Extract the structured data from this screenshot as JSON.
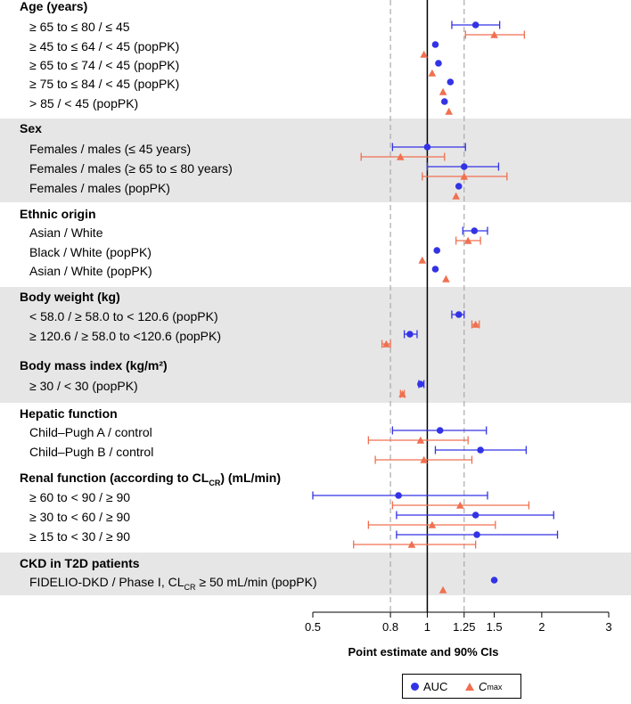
{
  "chart_data": {
    "type": "forest",
    "xscale": "log",
    "xlim": [
      0.5,
      3
    ],
    "xticks": [
      {
        "value": 0.5,
        "label": "0.5"
      },
      {
        "value": 0.8,
        "label": "0.8"
      },
      {
        "value": 1,
        "label": "1"
      },
      {
        "value": 1.25,
        "label": "1.25"
      },
      {
        "value": 1.5,
        "label": "1.5"
      },
      {
        "value": 2,
        "label": "2"
      },
      {
        "value": 3,
        "label": "3"
      }
    ],
    "reference_lines": [
      0.8,
      1,
      1.25
    ],
    "xlabel": "Point estimate and 90% CIs",
    "legend": {
      "auc": "AUC",
      "cmax_main": "C",
      "cmax_sub": "max"
    },
    "colors": {
      "auc": "#3333e6",
      "cmax": "#f07050",
      "band": "#e6e6e6"
    },
    "groups": [
      {
        "title": "Age (years)",
        "shaded": false,
        "rows": [
          {
            "label": "≥ 65 to ≤ 80 / ≤ 45",
            "auc": {
              "est": 1.34,
              "lo": 1.16,
              "hi": 1.55
            },
            "cmax": {
              "est": 1.5,
              "lo": 1.26,
              "hi": 1.8
            }
          },
          {
            "label": "≥ 45 to ≤ 64 / < 45 (popPK)",
            "auc": {
              "est": 1.05
            },
            "cmax": {
              "est": 0.98
            }
          },
          {
            "label": "≥ 65 to ≤ 74 / < 45 (popPK)",
            "auc": {
              "est": 1.07
            },
            "cmax": {
              "est": 1.03
            }
          },
          {
            "label": "≥ 75 to ≤ 84 / < 45 (popPK)",
            "auc": {
              "est": 1.15
            },
            "cmax": {
              "est": 1.1
            }
          },
          {
            "label": "> 85 / < 45 (popPK)",
            "auc": {
              "est": 1.11
            },
            "cmax": {
              "est": 1.14
            }
          }
        ]
      },
      {
        "title": "Sex",
        "shaded": true,
        "rows": [
          {
            "label": "Females / males (≤ 45 years)",
            "auc": {
              "est": 1.0,
              "lo": 0.81,
              "hi": 1.26
            },
            "cmax": {
              "est": 0.85,
              "lo": 0.67,
              "hi": 1.11
            }
          },
          {
            "label": "Females / males (≥ 65 to ≤ 80 years)",
            "auc": {
              "est": 1.25,
              "lo": 1.0,
              "hi": 1.54
            },
            "cmax": {
              "est": 1.25,
              "lo": 0.97,
              "hi": 1.62
            }
          },
          {
            "label": "Females / males (popPK)",
            "auc": {
              "est": 1.21
            },
            "cmax": {
              "est": 1.19
            }
          }
        ]
      },
      {
        "title": "Ethnic origin",
        "shaded": false,
        "rows": [
          {
            "label": "Asian / White",
            "auc": {
              "est": 1.33,
              "lo": 1.24,
              "hi": 1.44
            },
            "cmax": {
              "est": 1.28,
              "lo": 1.19,
              "hi": 1.38
            }
          },
          {
            "label": "Black / White (popPK)",
            "auc": {
              "est": 1.06
            },
            "cmax": {
              "est": 0.97
            }
          },
          {
            "label": "Asian / White (popPK)",
            "auc": {
              "est": 1.05
            },
            "cmax": {
              "est": 1.12
            }
          }
        ]
      },
      {
        "title": "Body weight (kg)",
        "shaded": true,
        "rows": [
          {
            "label": "< 58.0 / ≥ 58.0 to < 120.6 (popPK)",
            "auc": {
              "est": 1.21,
              "lo": 1.16,
              "hi": 1.25
            },
            "cmax": {
              "est": 1.34,
              "lo": 1.31,
              "hi": 1.37
            }
          },
          {
            "label": "≥ 120.6 / ≥ 58.0 to <120.6 (popPK)",
            "auc": {
              "est": 0.9,
              "lo": 0.87,
              "hi": 0.94
            },
            "cmax": {
              "est": 0.78,
              "lo": 0.76,
              "hi": 0.8
            }
          }
        ]
      },
      {
        "title": "Body mass index (kg/m²)",
        "shaded": true,
        "rows": [
          {
            "label": "≥ 30 / < 30 (popPK)",
            "auc": {
              "est": 0.96,
              "lo": 0.95,
              "hi": 0.98
            },
            "cmax": {
              "est": 0.86,
              "lo": 0.85,
              "hi": 0.87
            }
          }
        ]
      },
      {
        "title": "Hepatic function",
        "shaded": false,
        "rows": [
          {
            "label": "Child–Pugh A / control",
            "auc": {
              "est": 1.08,
              "lo": 0.81,
              "hi": 1.43
            },
            "cmax": {
              "est": 0.96,
              "lo": 0.7,
              "hi": 1.28
            }
          },
          {
            "label": "Child–Pugh B / control",
            "auc": {
              "est": 1.38,
              "lo": 1.05,
              "hi": 1.82
            },
            "cmax": {
              "est": 0.98,
              "lo": 0.73,
              "hi": 1.31
            }
          }
        ]
      },
      {
        "title": "Renal function (according to CLCR) (mL/min)",
        "title_parts": {
          "pre": "Renal function (according to CL",
          "sub": "CR",
          "post": ") (mL/min)"
        },
        "shaded": false,
        "rows": [
          {
            "label": "≥ 60 to < 90 / ≥ 90",
            "auc": {
              "est": 0.84,
              "lo": 0.5,
              "hi": 1.44
            },
            "cmax": {
              "est": 1.22,
              "lo": 0.81,
              "hi": 1.85
            }
          },
          {
            "label": "≥ 30 to < 60 / ≥ 90",
            "auc": {
              "est": 1.34,
              "lo": 0.83,
              "hi": 2.15
            },
            "cmax": {
              "est": 1.03,
              "lo": 0.7,
              "hi": 1.51
            }
          },
          {
            "label": "≥ 15 to < 30 / ≥ 90",
            "auc": {
              "est": 1.35,
              "lo": 0.83,
              "hi": 2.2
            },
            "cmax": {
              "est": 0.91,
              "lo": 0.64,
              "hi": 1.34
            }
          }
        ]
      },
      {
        "title": "CKD in T2D patients",
        "shaded": true,
        "rows": [
          {
            "label": "FIDELIO-DKD / Phase I, CLCR ≥ 50 mL/min (popPK)",
            "label_parts": {
              "pre": "FIDELIO-DKD / Phase I, CL",
              "sub": "CR",
              "post": " ≥ 50 mL/min (popPK)"
            },
            "auc": {
              "est": 1.5
            },
            "cmax": {
              "est": 1.1
            }
          }
        ]
      }
    ]
  }
}
